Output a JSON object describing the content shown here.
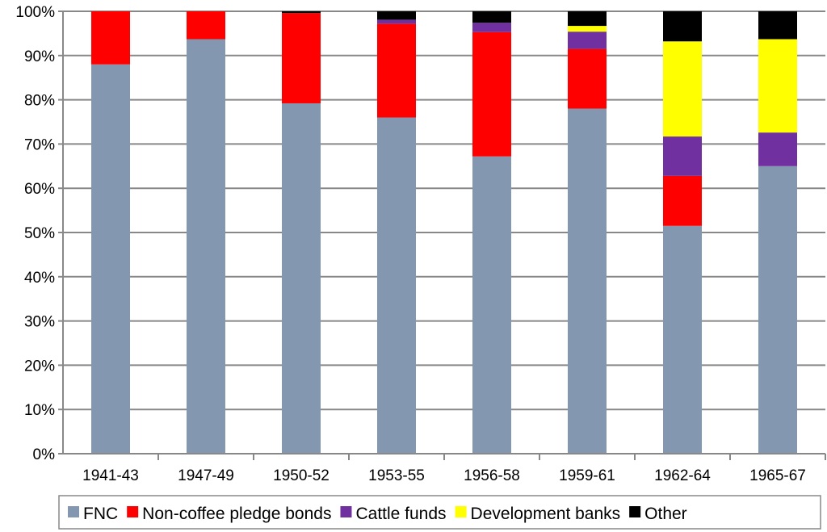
{
  "chart_data": {
    "type": "bar",
    "stacked": true,
    "categories": [
      "1941-43",
      "1947-49",
      "1950-52",
      "1953-55",
      "1956-58",
      "1959-61",
      "1962-64",
      "1965-67"
    ],
    "series": [
      {
        "name": "FNC",
        "color": "#8497B0",
        "values": [
          88.0,
          93.7,
          79.2,
          76.0,
          67.2,
          78.0,
          51.5,
          65.0
        ]
      },
      {
        "name": "Non-coffee pledge bonds",
        "color": "#FF0000",
        "values": [
          12.0,
          6.3,
          20.4,
          21.2,
          28.1,
          13.5,
          11.3,
          0
        ]
      },
      {
        "name": "Cattle funds",
        "color": "#7030A0",
        "values": [
          0,
          0,
          0,
          0.9,
          2.1,
          3.9,
          8.9,
          7.6
        ]
      },
      {
        "name": "Development banks",
        "color": "#FFFF00",
        "values": [
          0,
          0,
          0,
          0,
          0,
          1.3,
          21.5,
          21.1
        ]
      },
      {
        "name": "Other",
        "color": "#000000",
        "values": [
          0,
          0,
          0.4,
          1.9,
          2.6,
          3.3,
          6.8,
          6.3
        ]
      }
    ],
    "yticks": [
      "0%",
      "10%",
      "20%",
      "30%",
      "40%",
      "50%",
      "60%",
      "70%",
      "80%",
      "90%",
      "100%"
    ],
    "ylim": [
      0,
      100
    ],
    "grid": true,
    "legend": "bottom",
    "xlabel": "",
    "ylabel": "",
    "title": ""
  }
}
